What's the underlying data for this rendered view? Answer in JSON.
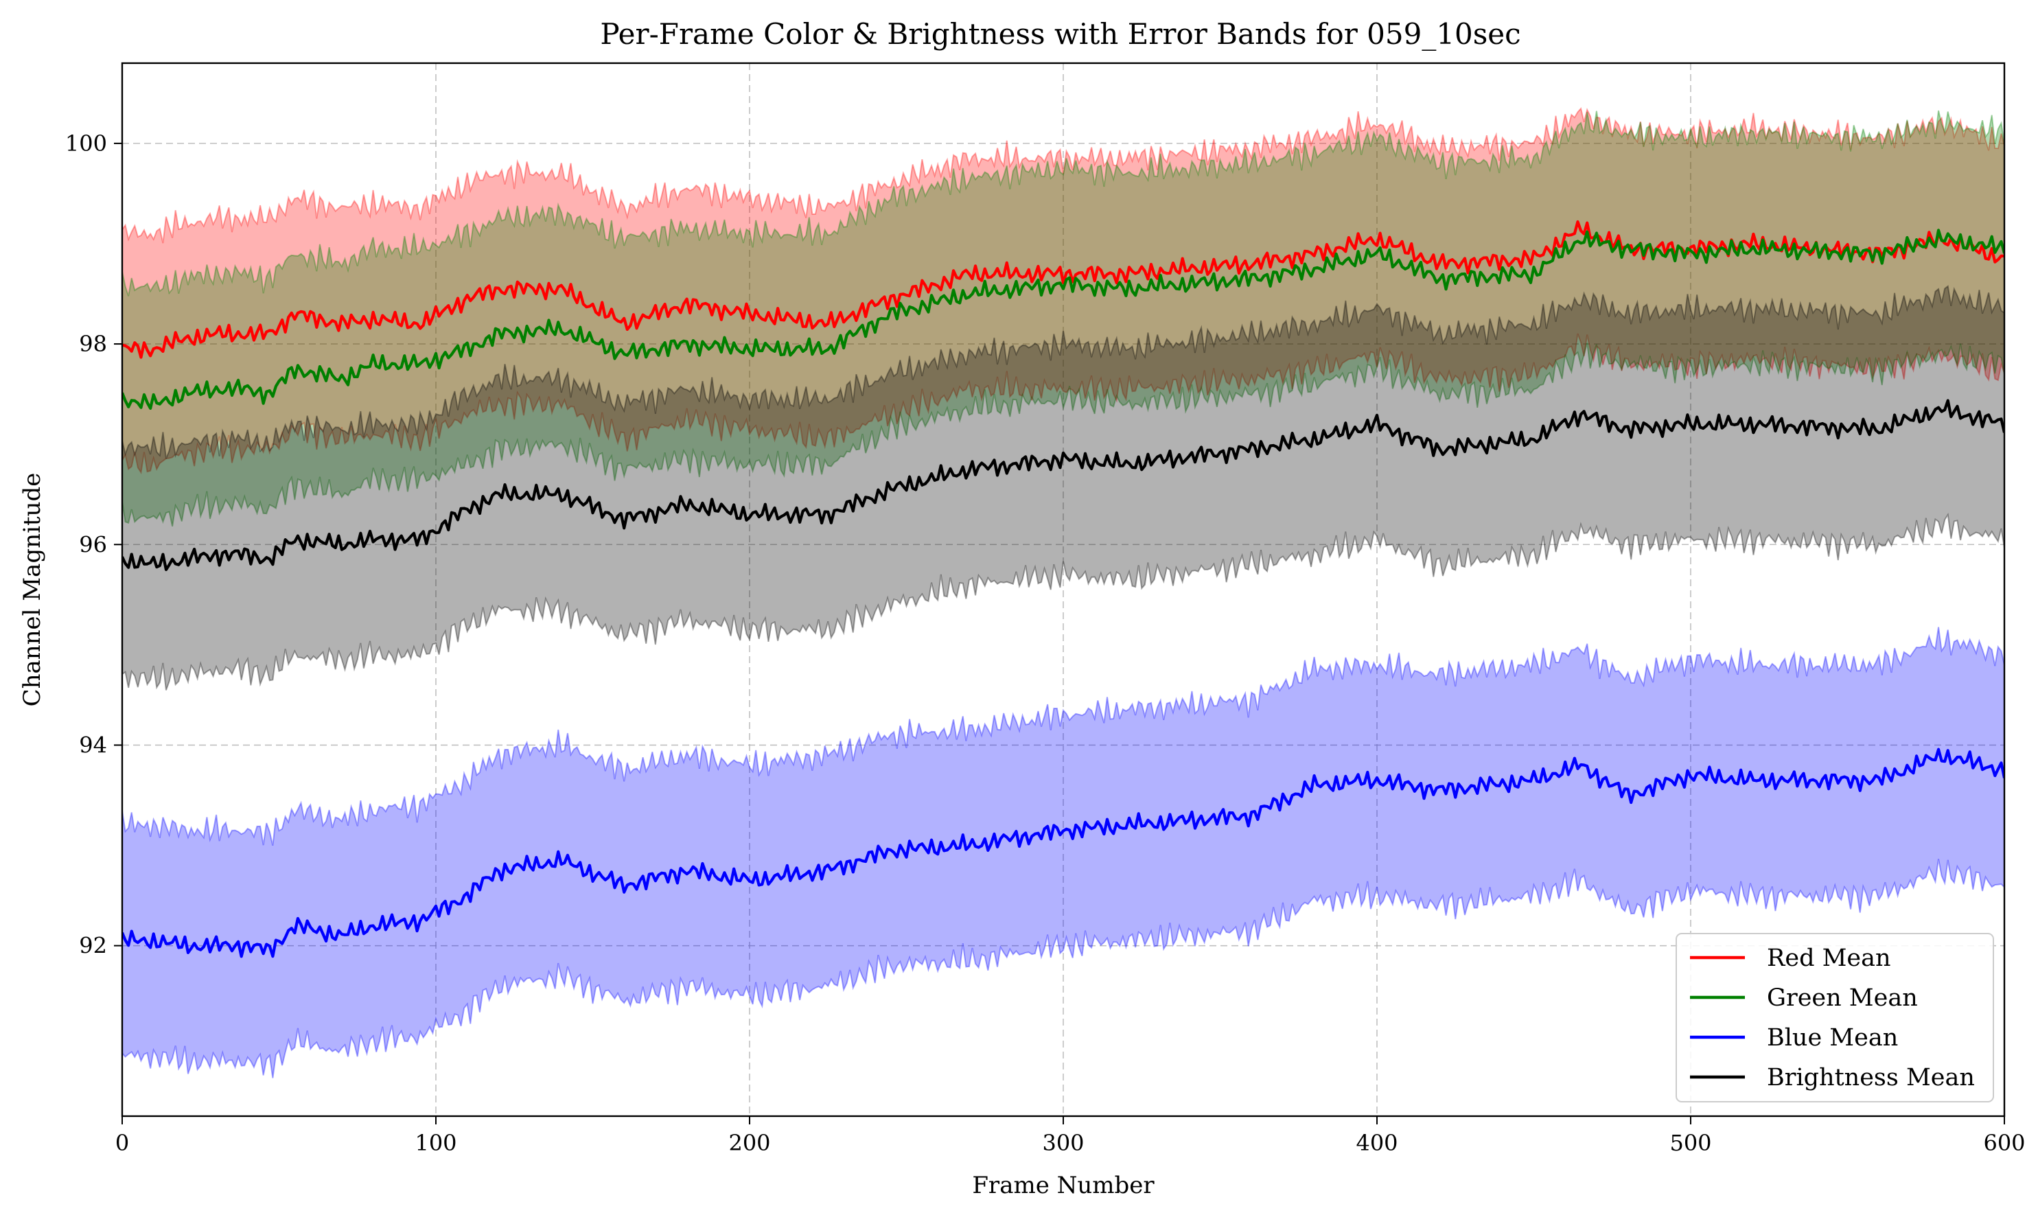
{
  "chart_data": {
    "type": "line",
    "title": "Per-Frame Color & Brightness with Error Bands for 059_10sec",
    "xlabel": "Frame Number",
    "ylabel": "Channel Magnitude",
    "xlim": [
      0,
      600
    ],
    "ylim": [
      90.3,
      100.8
    ],
    "xticks": [
      0,
      100,
      200,
      300,
      400,
      500,
      600
    ],
    "yticks": [
      92,
      94,
      96,
      98,
      100
    ],
    "grid": true,
    "legend_position": "lower-right",
    "x_keypoints": [
      0,
      10,
      20,
      30,
      40,
      47,
      55,
      70,
      80,
      95,
      110,
      120,
      140,
      160,
      180,
      200,
      225,
      245,
      270,
      300,
      320,
      360,
      380,
      400,
      420,
      450,
      465,
      480,
      500,
      520,
      560,
      580,
      600
    ],
    "band_halfwidth": 1.15,
    "series": [
      {
        "name": "Red Mean",
        "color": "#ff0000",
        "fill": "#ff0000",
        "fill_opacity": 0.3,
        "values": [
          97.95,
          97.95,
          98.05,
          98.1,
          98.1,
          98.1,
          98.3,
          98.2,
          98.25,
          98.2,
          98.45,
          98.55,
          98.55,
          98.2,
          98.4,
          98.3,
          98.2,
          98.45,
          98.7,
          98.7,
          98.7,
          98.8,
          98.9,
          99.05,
          98.8,
          98.85,
          99.15,
          98.95,
          98.95,
          99.0,
          98.9,
          99.05,
          98.85
        ]
      },
      {
        "name": "Green Mean",
        "color": "#008000",
        "fill": "#008000",
        "fill_opacity": 0.3,
        "values": [
          97.45,
          97.4,
          97.5,
          97.55,
          97.55,
          97.5,
          97.75,
          97.65,
          97.8,
          97.8,
          97.95,
          98.1,
          98.15,
          97.9,
          98.0,
          97.95,
          97.95,
          98.3,
          98.5,
          98.6,
          98.55,
          98.65,
          98.75,
          98.9,
          98.65,
          98.7,
          99.05,
          98.95,
          98.9,
          98.95,
          98.9,
          99.05,
          98.95
        ]
      },
      {
        "name": "Blue Mean",
        "color": "#0000ff",
        "fill": "#0000ff",
        "fill_opacity": 0.3,
        "values": [
          92.05,
          92.05,
          92.0,
          92.0,
          92.0,
          91.95,
          92.2,
          92.1,
          92.2,
          92.25,
          92.5,
          92.75,
          92.85,
          92.6,
          92.75,
          92.65,
          92.75,
          92.95,
          93.0,
          93.15,
          93.2,
          93.3,
          93.6,
          93.65,
          93.55,
          93.65,
          93.8,
          93.5,
          93.7,
          93.65,
          93.65,
          93.9,
          93.75
        ]
      },
      {
        "name": "Brightness Mean",
        "color": "#000000",
        "fill": "#000000",
        "fill_opacity": 0.3,
        "values": [
          95.85,
          95.8,
          95.85,
          95.9,
          95.9,
          95.85,
          96.05,
          96.0,
          96.05,
          96.05,
          96.35,
          96.5,
          96.5,
          96.25,
          96.4,
          96.3,
          96.3,
          96.55,
          96.75,
          96.85,
          96.8,
          96.95,
          97.05,
          97.2,
          96.95,
          97.05,
          97.3,
          97.15,
          97.2,
          97.2,
          97.15,
          97.35,
          97.2
        ]
      }
    ]
  }
}
